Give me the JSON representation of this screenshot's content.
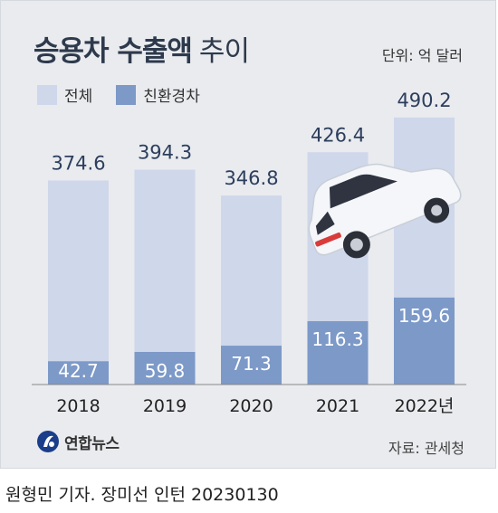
{
  "header": {
    "title_bold": "승용차 수출액",
    "title_light": "추이",
    "unit": "단위: 억 달러"
  },
  "legend": {
    "total": {
      "label": "전체",
      "color": "#cfd7ea"
    },
    "eco": {
      "label": "친환경차",
      "color": "#7c99c8"
    }
  },
  "chart_data": {
    "type": "bar",
    "categories": [
      "2018",
      "2019",
      "2020",
      "2021",
      "2022년"
    ],
    "series": [
      {
        "name": "전체",
        "values": [
          374.6,
          394.3,
          346.8,
          426.4,
          490.2
        ]
      },
      {
        "name": "친환경차",
        "values": [
          42.7,
          59.8,
          71.3,
          116.3,
          159.6
        ]
      }
    ],
    "value_labels_total": [
      "374.6",
      "394.3",
      "346.8",
      "426.4",
      "490.2"
    ],
    "value_labels_eco": [
      "42.7",
      "59.8",
      "71.3",
      "116.3",
      "159.6"
    ],
    "ylim": [
      0,
      510
    ],
    "grid": false,
    "legend_position": "top-left"
  },
  "footer": {
    "logo": "연합뉴스",
    "source": "자료: 관세청",
    "credit": "원형민 기자. 장미선 인턴  20230130"
  },
  "colors": {
    "total_label": "#2d3e5c",
    "eco_label": "#ffffff",
    "axis": "#888888"
  }
}
